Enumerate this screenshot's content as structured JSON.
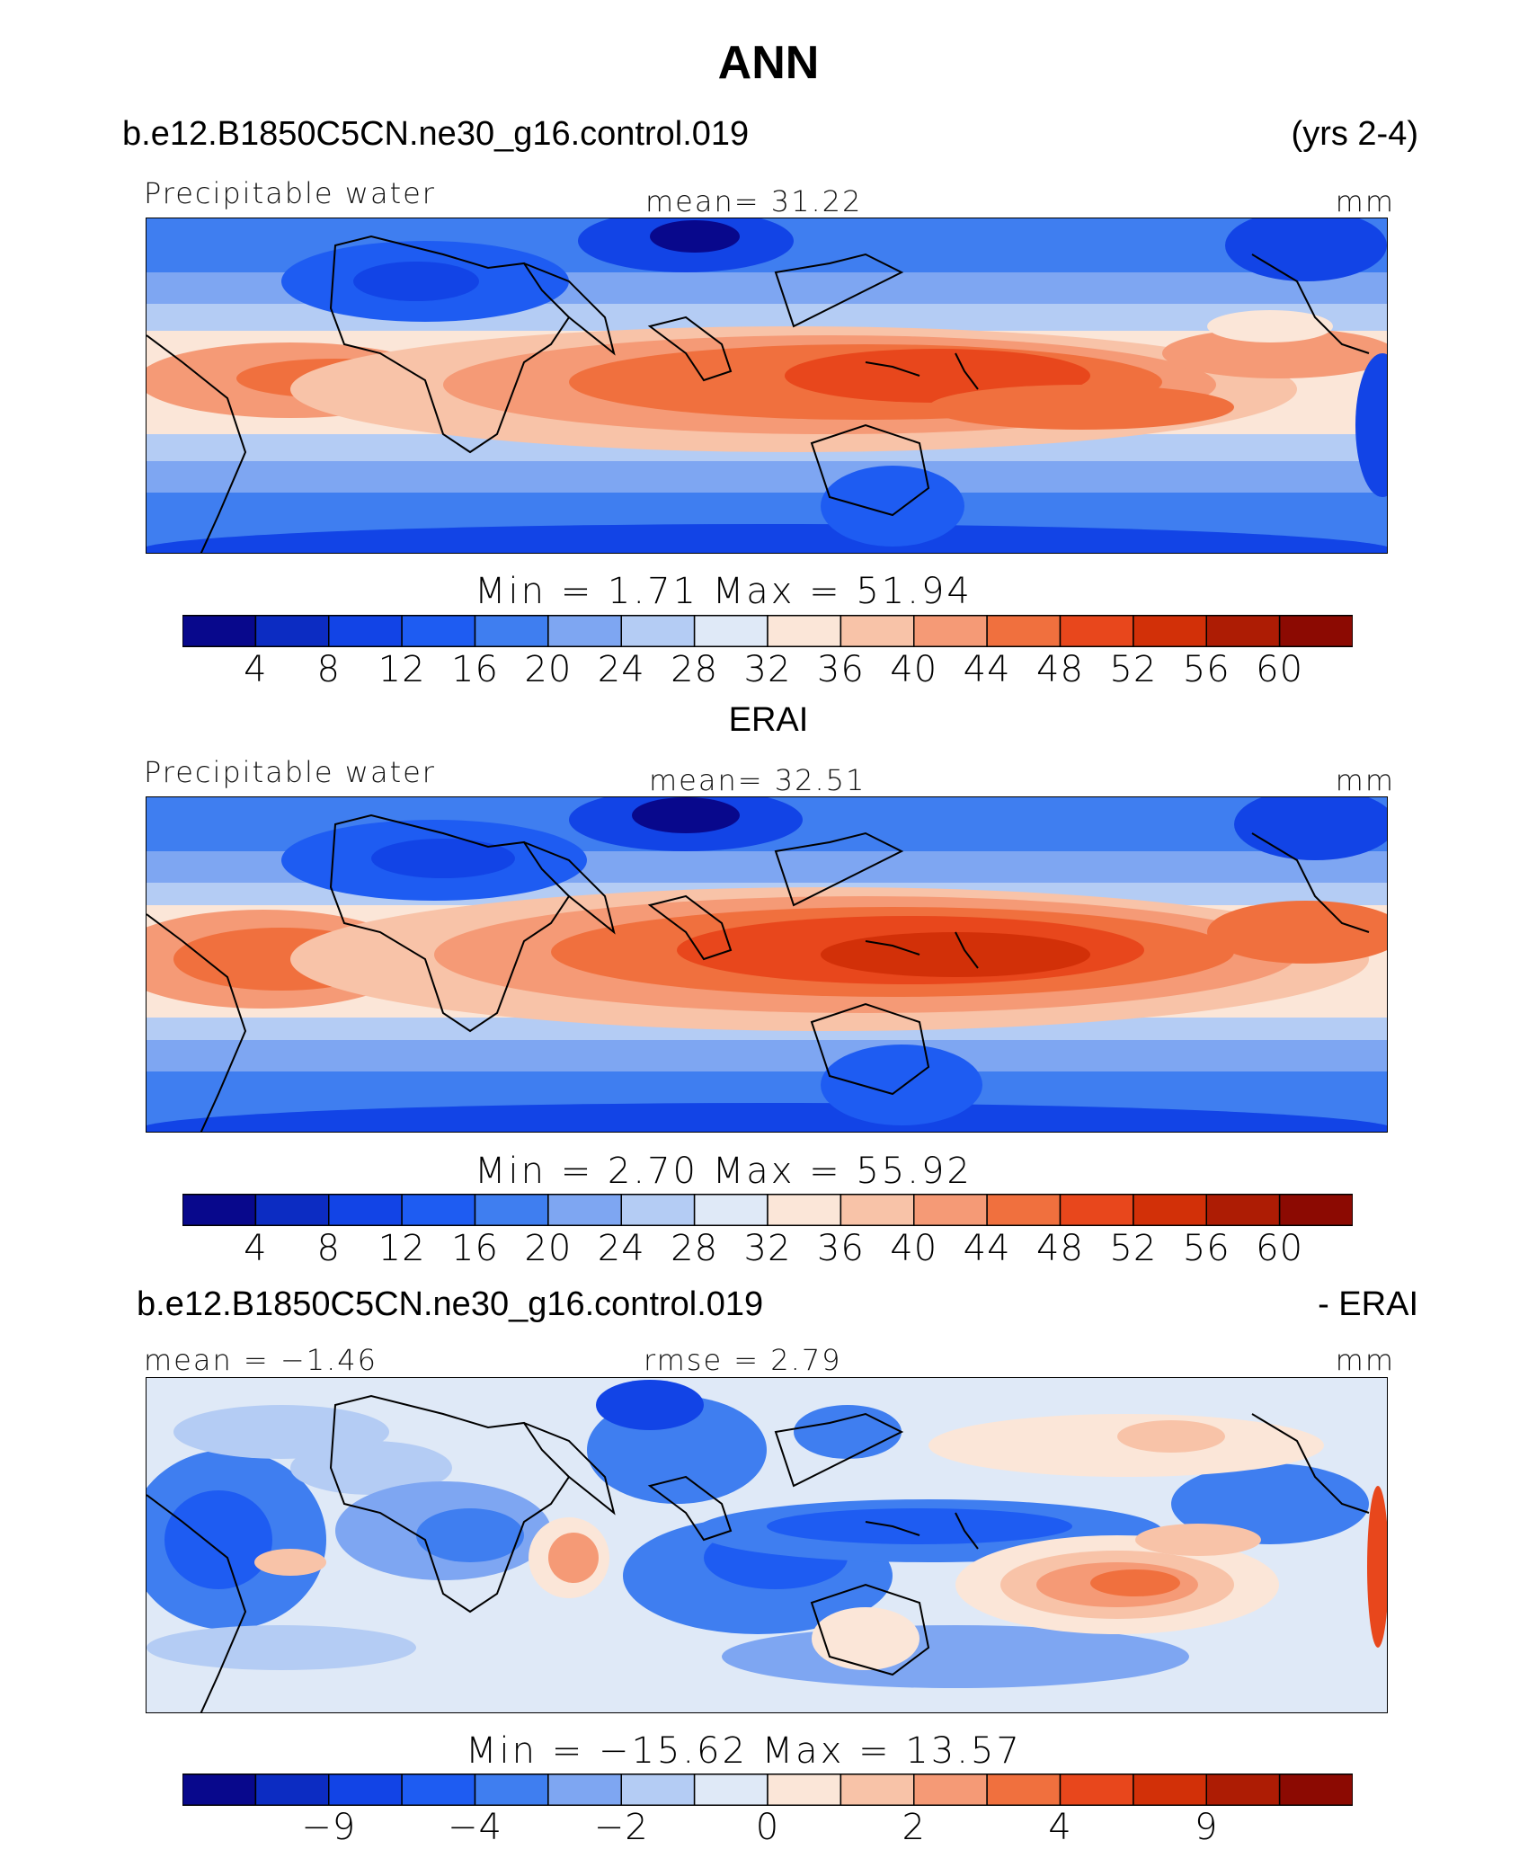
{
  "title": "ANN",
  "palette": [
    "#08088c",
    "#0c2cc2",
    "#1244e6",
    "#1e5cf2",
    "#3f7ef0",
    "#7ea6f2",
    "#b4ccf4",
    "#dfe9f7",
    "#fbe6d8",
    "#f8c3a8",
    "#f59a76",
    "#f0703e",
    "#e8471c",
    "#d23008",
    "#ad1c04",
    "#8c0a02"
  ],
  "panel1": {
    "case_name": "b.e12.B1850C5CN.ne30_g16.control.019",
    "years": "(yrs 2-4)",
    "field": "Precipitable water",
    "mean_text": "mean=   31.22",
    "units": "mm",
    "minmax_text": "Min  =     1.71  Max  =    51.94",
    "ticks": [
      "4",
      "8",
      "12",
      "16",
      "20",
      "24",
      "28",
      "32",
      "36",
      "40",
      "44",
      "48",
      "52",
      "56",
      "60"
    ]
  },
  "panel2": {
    "obs_name": "ERAI",
    "field": "Precipitable water",
    "mean_text": "mean=   32.51",
    "units": "mm",
    "minmax_text": "Min  =     2.70  Max  =    55.92",
    "ticks": [
      "4",
      "8",
      "12",
      "16",
      "20",
      "24",
      "28",
      "32",
      "36",
      "40",
      "44",
      "48",
      "52",
      "56",
      "60"
    ]
  },
  "panel3": {
    "case_name": "b.e12.B1850C5CN.ne30_g16.control.019",
    "minus_obs": "- ERAI",
    "mean_text": "mean  =   −1.46",
    "rmse_text": "rmse  =      2.79",
    "units": "mm",
    "minmax_text": "Min  = −15.62  Max  =    13.57",
    "ticks": [
      "−9",
      "−4",
      "−2",
      "0",
      "2",
      "4",
      "9"
    ]
  }
}
